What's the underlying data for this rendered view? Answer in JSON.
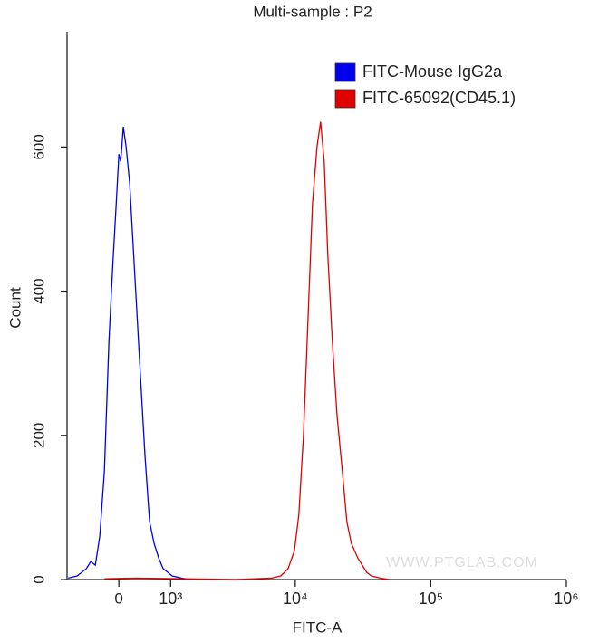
{
  "chart_data": {
    "type": "line",
    "title": "Multi-sample : P2",
    "x_label": "FITC-A",
    "y_label": "Count",
    "annotation": "WWW.PTGLAB.COM",
    "x_scale": "biexponential",
    "xlim": [
      -1000,
      1000000
    ],
    "xticks": [
      0,
      {
        "value": 1000,
        "label": "10³"
      },
      {
        "value": 10000,
        "label": "10⁴"
      },
      {
        "value": 100000,
        "label": "10⁵"
      },
      {
        "value": 1000000,
        "label": "10⁶"
      }
    ],
    "ylim": [
      0,
      760
    ],
    "yticks": [
      0,
      200,
      400,
      600
    ],
    "legend": "upper right",
    "series": [
      {
        "name": "FITC-Mouse IgG2a",
        "color": "#0000ee",
        "x": [
          -973,
          -769,
          -584,
          -496,
          -411,
          -330,
          -249,
          -170,
          -108,
          -46,
          0,
          31,
          77,
          124,
          186,
          249,
          313,
          378,
          461,
          548,
          638,
          731,
          829,
          931,
          1038,
          1280,
          1545
        ],
        "values": [
          2,
          5,
          15,
          25,
          20,
          60,
          150,
          330,
          430,
          520,
          590,
          580,
          628,
          600,
          550,
          460,
          370,
          280,
          170,
          80,
          50,
          30,
          15,
          10,
          5,
          2,
          0
        ]
      },
      {
        "name": "FITC-65092(CD45.1)",
        "color": "#e00000",
        "x": [
          -249,
          297,
          3570,
          6680,
          7810,
          8850,
          9850,
          10640,
          11500,
          12420,
          13410,
          14480,
          15400,
          16390,
          17420,
          18820,
          20330,
          22290,
          24060,
          25990,
          28940,
          31240,
          33740,
          36450,
          42480,
          49550
        ],
        "values": [
          1,
          2,
          0,
          2,
          5,
          15,
          40,
          90,
          200,
          360,
          520,
          600,
          635,
          580,
          450,
          330,
          230,
          150,
          80,
          50,
          30,
          20,
          10,
          5,
          2,
          0
        ]
      }
    ]
  }
}
